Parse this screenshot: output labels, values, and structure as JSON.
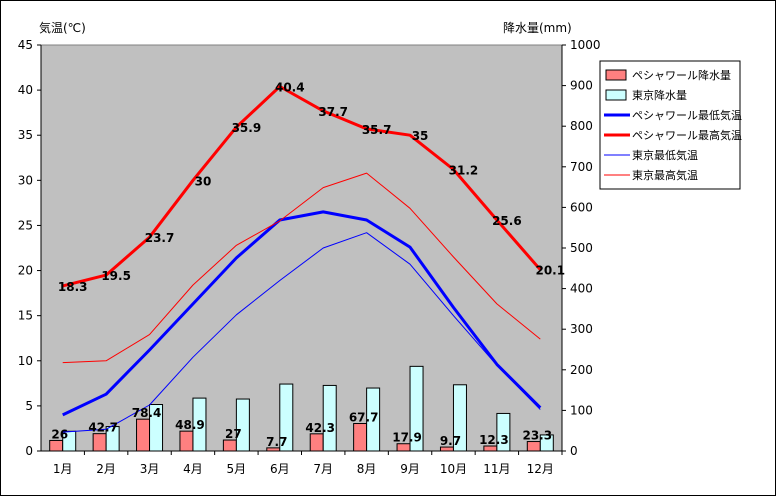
{
  "chart_data": {
    "type": "bar+line",
    "left_axis_label": "気温(℃)",
    "right_axis_label": "降水量(mm)",
    "categories": [
      "1月",
      "2月",
      "3月",
      "4月",
      "5月",
      "6月",
      "7月",
      "8月",
      "9月",
      "10月",
      "11月",
      "12月"
    ],
    "y_left": {
      "min": 0,
      "max": 45,
      "ticks": [
        0,
        5,
        10,
        15,
        20,
        25,
        30,
        35,
        40,
        45
      ]
    },
    "y_right": {
      "min": 0,
      "max": 1000,
      "ticks": [
        0,
        100,
        200,
        300,
        400,
        500,
        600,
        700,
        800,
        900,
        1000
      ]
    },
    "bars": [
      {
        "name": "ペシャワール降水量",
        "color": "#ff8080",
        "axis": "right",
        "values": [
          26,
          42.7,
          78.4,
          48.9,
          27,
          7.7,
          42.3,
          67.7,
          17.9,
          9.7,
          12.3,
          23.3
        ],
        "labels": [
          "26",
          "42.7",
          "78.4",
          "48.9",
          "27",
          "7.7",
          "42.3",
          "67.7",
          "17.9",
          "9.7",
          "12.3",
          "23.3"
        ]
      },
      {
        "name": "東京降水量",
        "color": "#ccffff",
        "axis": "right",
        "values": [
          48.6,
          60.2,
          114.5,
          130.3,
          128,
          164.9,
          161.5,
          155.1,
          208.5,
          163.1,
          92.5,
          39.6
        ]
      }
    ],
    "lines": [
      {
        "name": "ペシャワール最低気温",
        "color": "#0000ff",
        "width": 3,
        "axis": "left",
        "values": [
          4,
          6.3,
          11.2,
          16.3,
          21.4,
          25.6,
          26.5,
          25.6,
          22.6,
          15.9,
          9.6,
          4.8
        ]
      },
      {
        "name": "ペシャワール最高気温",
        "color": "#ff0000",
        "width": 3,
        "axis": "left",
        "values": [
          18.3,
          19.5,
          23.7,
          30,
          35.9,
          40.4,
          37.7,
          35.7,
          35,
          31.2,
          25.6,
          20.1
        ],
        "labels": [
          "18.3",
          "19.5",
          "23.7",
          "30",
          "35.9",
          "40.4",
          "37.7",
          "35.7",
          "35",
          "31.2",
          "25.6",
          "20.1"
        ]
      },
      {
        "name": "東京最低気温",
        "color": "#0000ff",
        "width": 1,
        "axis": "left",
        "values": [
          2.1,
          2.4,
          5.1,
          10.4,
          15.1,
          18.9,
          22.5,
          24.2,
          20.7,
          15,
          9.5,
          4.6
        ]
      },
      {
        "name": "東京最高気温",
        "color": "#ff0000",
        "width": 1,
        "axis": "left",
        "values": [
          9.8,
          10,
          12.9,
          18.4,
          22.8,
          25.5,
          29.2,
          30.8,
          26.9,
          21.5,
          16.3,
          12.4
        ]
      }
    ],
    "legend_position": "right",
    "plot_background": "#c0c0c0",
    "grid": false
  }
}
